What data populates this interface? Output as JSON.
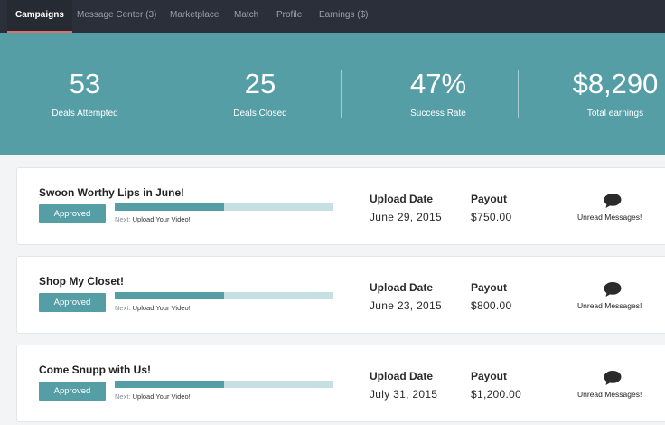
{
  "nav": {
    "tabs": [
      {
        "label": "Campaigns",
        "active": true
      },
      {
        "label": "Message Center (3)"
      },
      {
        "label": "Marketplace"
      },
      {
        "label": "Match"
      },
      {
        "label": "Profile"
      },
      {
        "label": "Earnings ($)"
      }
    ]
  },
  "stats": [
    {
      "value": "53",
      "label": "Deals Attempted"
    },
    {
      "value": "25",
      "label": "Deals Closed"
    },
    {
      "value": "47%",
      "label": "Success Rate"
    },
    {
      "value": "$8,290",
      "label": "Total earnings"
    }
  ],
  "campaigns": [
    {
      "title": "Swoon Worthy Lips in June!",
      "status": "Approved",
      "progress": 0.5,
      "next_prefix": "Next:",
      "next_step": "Upload Your Video!",
      "upload_date_label": "Upload Date",
      "upload_date": "June 29, 2015",
      "payout_label": "Payout",
      "payout": "$750.00",
      "messages_label": "Unread Messages!"
    },
    {
      "title": "Shop My Closet!",
      "status": "Approved",
      "progress": 0.5,
      "next_prefix": "Next:",
      "next_step": "Upload Your Video!",
      "upload_date_label": "Upload Date",
      "upload_date": "June 23, 2015",
      "payout_label": "Payout",
      "payout": "$800.00",
      "messages_label": "Unread Messages!"
    },
    {
      "title": "Come Snupp with Us!",
      "status": "Approved",
      "progress": 0.5,
      "next_prefix": "Next:",
      "next_step": "Upload Your Video!",
      "upload_date_label": "Upload Date",
      "upload_date": "July 31, 2015",
      "payout_label": "Payout",
      "payout": "$1,200.00",
      "messages_label": "Unread Messages!"
    }
  ],
  "colors": {
    "nav_bg": "#2b2f3a",
    "accent": "#559ea6",
    "active_tab_underline": "#d9726b",
    "progress_track": "#c5dfe2"
  },
  "icons": {
    "messages": "speech-bubble-icon"
  }
}
